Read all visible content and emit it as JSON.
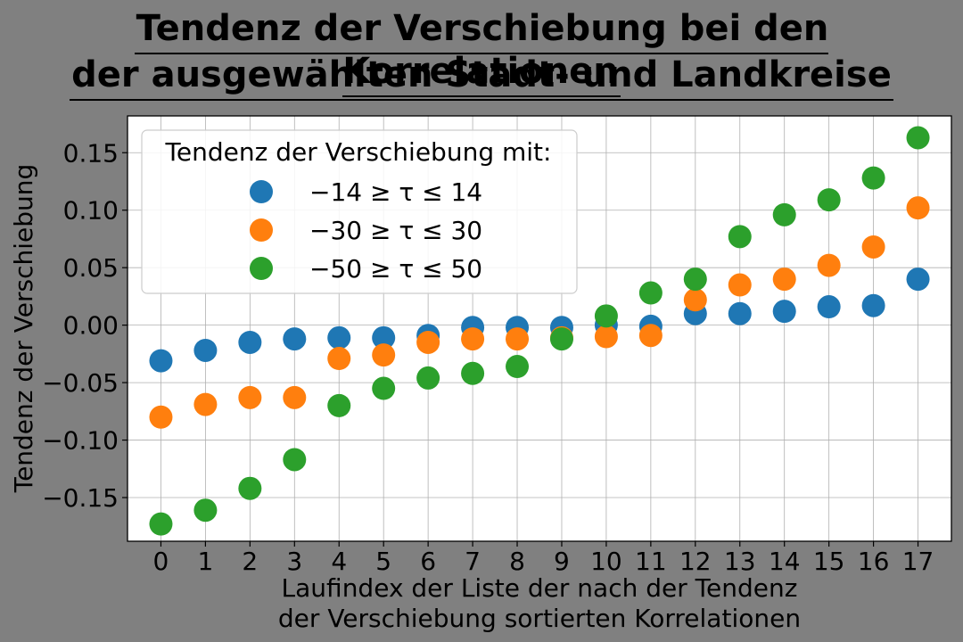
{
  "chart_data": {
    "type": "scatter",
    "title": [
      "Tendenz der Verschiebung bei den Korrelationen",
      "der ausgewählten Stadt- und Landkreise"
    ],
    "xlabel": [
      "Laufindex der Liste der nach der Tendenz",
      "der Verschiebung sortierten Korrelationen"
    ],
    "ylabel": "Tendenz der Verschiebung",
    "x": [
      0,
      1,
      2,
      3,
      4,
      5,
      6,
      7,
      8,
      9,
      10,
      11,
      12,
      13,
      14,
      15,
      16,
      17
    ],
    "xticks": [
      "0",
      "1",
      "2",
      "3",
      "4",
      "5",
      "6",
      "7",
      "8",
      "9",
      "10",
      "11",
      "12",
      "13",
      "14",
      "15",
      "16",
      "17"
    ],
    "xlim": [
      -0.75,
      17.75
    ],
    "ylim": [
      -0.188,
      0.182
    ],
    "yticks": [
      -0.15,
      -0.1,
      -0.05,
      0.0,
      0.05,
      0.1,
      0.15
    ],
    "ytick_labels": [
      "−0.15",
      "−0.10",
      "−0.05",
      "0.00",
      "0.05",
      "0.10",
      "0.15"
    ],
    "grid": true,
    "legend": {
      "title": "Tendenz der Verschiebung mit:",
      "placement": "upper-left"
    },
    "series": [
      {
        "name": "−14 ≥ τ ≤ 14",
        "color": "#1f77b4",
        "values": [
          -0.031,
          -0.022,
          -0.015,
          -0.012,
          -0.011,
          -0.011,
          -0.009,
          -0.002,
          -0.002,
          -0.002,
          0.0,
          -0.001,
          0.01,
          0.01,
          0.012,
          0.016,
          0.017,
          0.04
        ]
      },
      {
        "name": "−30 ≥ τ ≤ 30",
        "color": "#ff7f0e",
        "values": [
          -0.08,
          -0.069,
          -0.063,
          -0.063,
          -0.029,
          -0.026,
          -0.015,
          -0.012,
          -0.012,
          -0.011,
          -0.01,
          -0.009,
          0.022,
          0.035,
          0.04,
          0.052,
          0.068,
          0.102
        ]
      },
      {
        "name": "−50 ≥ τ ≤ 50",
        "color": "#2ca02c",
        "values": [
          -0.173,
          -0.161,
          -0.142,
          -0.117,
          -0.07,
          -0.055,
          -0.046,
          -0.042,
          -0.036,
          -0.012,
          0.008,
          0.028,
          0.04,
          0.077,
          0.096,
          0.109,
          0.128,
          0.163
        ]
      }
    ]
  }
}
